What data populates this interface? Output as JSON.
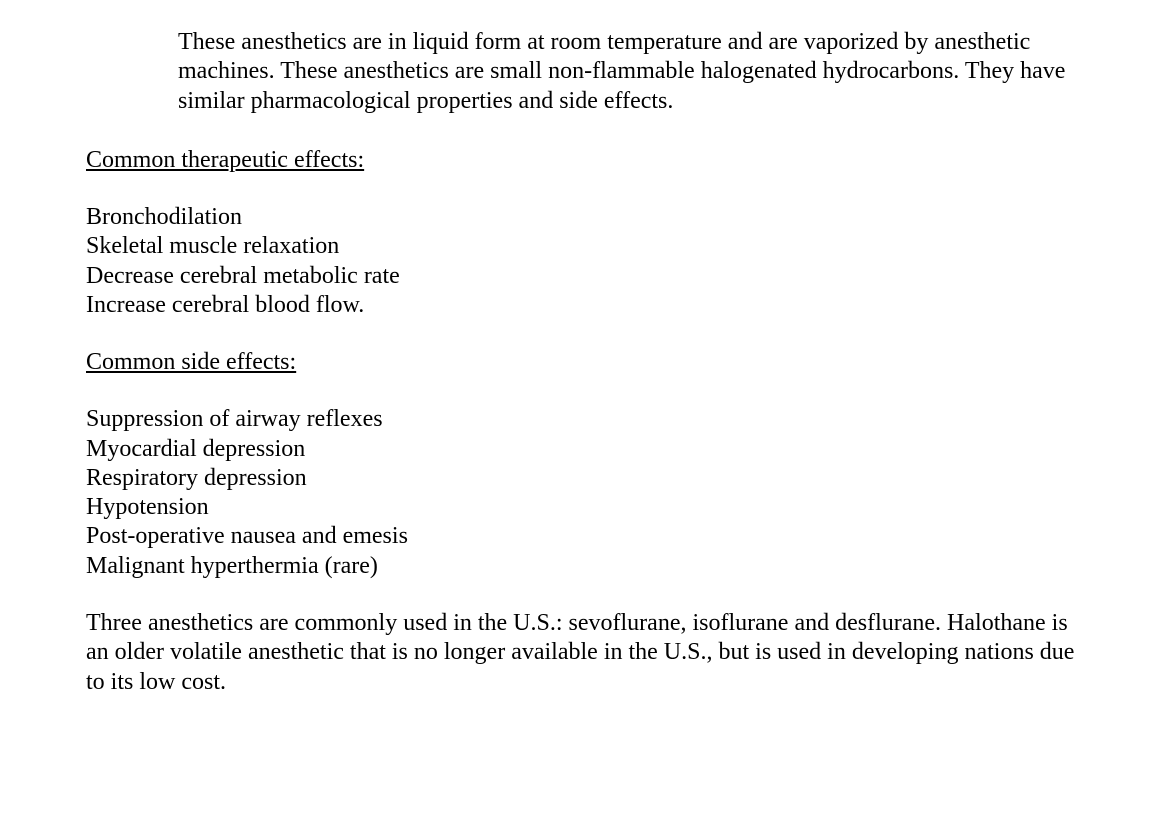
{
  "typography": {
    "font_family": "Times New Roman",
    "font_size_pt": 18,
    "color": "#000000",
    "background_color": "#ffffff",
    "line_height": 1.22
  },
  "intro": {
    "text": "These anesthetics are in liquid form at room temperature and are vaporized by anesthetic machines.  These anesthetics are small non-flammable halogenated hydrocarbons. They have similar pharmacological properties and side effects."
  },
  "therapeutic": {
    "heading": "Common therapeutic effects:",
    "items": [
      "Bronchodilation",
      "Skeletal muscle relaxation",
      "Decrease cerebral metabolic rate",
      "Increase cerebral blood flow."
    ]
  },
  "side_effects": {
    "heading": "Common side effects:",
    "items": [
      "Suppression of airway reflexes",
      "Myocardial depression",
      "Respiratory depression",
      "Hypotension",
      "Post-operative nausea and emesis",
      "Malignant hyperthermia (rare)"
    ]
  },
  "closing": {
    "text": "Three anesthetics are commonly used in the U.S.: sevoflurane, isoflurane and desflurane. Halothane is an older volatile anesthetic that is no longer available in the U.S., but is used in developing nations due to its low cost."
  }
}
